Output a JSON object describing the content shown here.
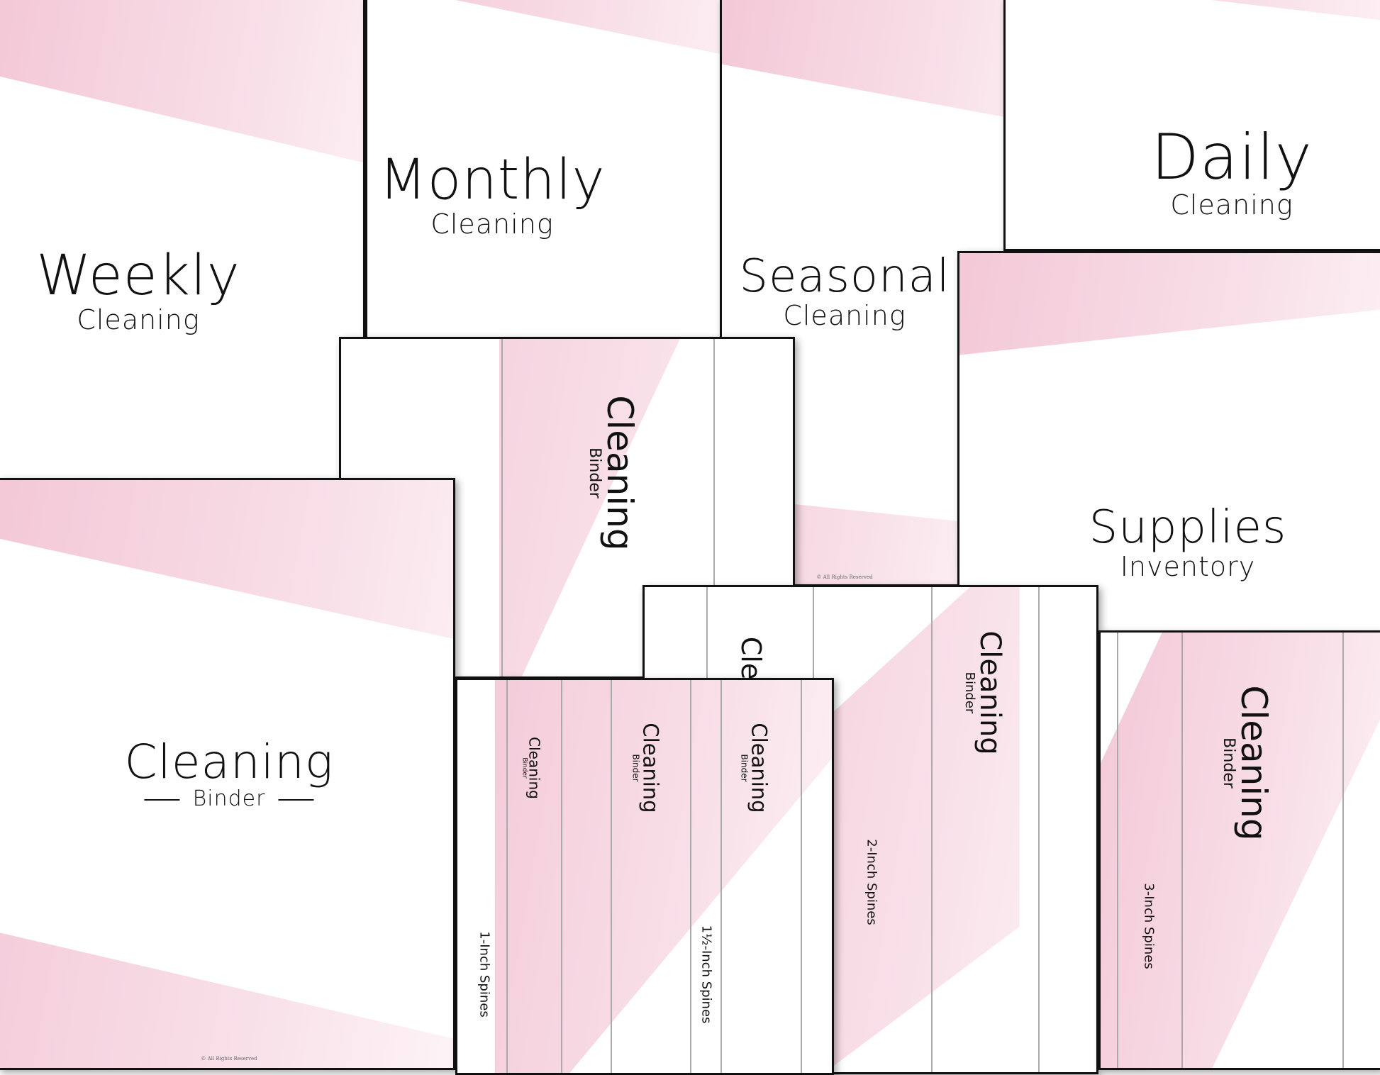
{
  "colors": {
    "accent_pink": "#f3c8d7",
    "border": "#111111"
  },
  "pages": {
    "weekly": {
      "title": "Weekly",
      "subtitle": "Cleaning"
    },
    "monthly": {
      "title": "Monthly",
      "subtitle": "Cleaning"
    },
    "seasonal": {
      "title": "Seasonal",
      "subtitle": "Cleaning",
      "copyright": "© All Rights Reserved"
    },
    "daily": {
      "title": "Daily",
      "subtitle": "Cleaning"
    },
    "supplies": {
      "title": "Supplies",
      "subtitle": "Inventory"
    },
    "cover": {
      "title": "Cleaning",
      "subtitle": "Binder",
      "copyright": "© All Rights Reserved"
    }
  },
  "spines": {
    "title": "Cleaning",
    "subtitle": "Binder",
    "partial": "Cle",
    "one_inch": "1-Inch Spines",
    "one_half_inch": "1½-Inch Spines",
    "two_inch": "2-Inch Spines",
    "three_inch": "3-Inch Spines"
  }
}
